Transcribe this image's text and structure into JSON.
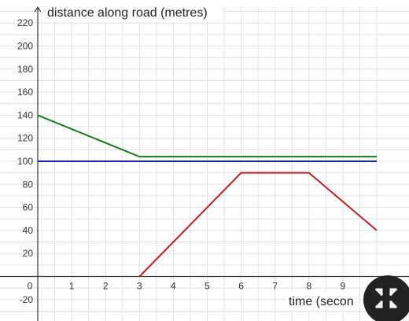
{
  "chart_data": {
    "type": "line",
    "ylabel": "distance along road (metres)",
    "xlabel": "time (secon",
    "xlim": [
      0,
      10
    ],
    "ylim": [
      -20,
      220
    ],
    "x_ticks": [
      0,
      1,
      2,
      3,
      4,
      5,
      6,
      7,
      8,
      9
    ],
    "y_ticks": [
      -20,
      20,
      40,
      60,
      80,
      100,
      120,
      140,
      160,
      180,
      200,
      220
    ],
    "grid": true,
    "series": [
      {
        "color": "#1a7a1a",
        "x": [
          0,
          3,
          10
        ],
        "y": [
          140,
          104,
          104
        ]
      },
      {
        "color": "#1f1fa8",
        "x": [
          0,
          10
        ],
        "y": [
          100,
          100
        ]
      },
      {
        "color": "#c42020",
        "x": [
          3,
          6,
          8,
          10
        ],
        "y": [
          0,
          90,
          90,
          40
        ]
      }
    ]
  },
  "toolbar": {
    "fullscreen_icon": "exit-fullscreen-icon"
  }
}
